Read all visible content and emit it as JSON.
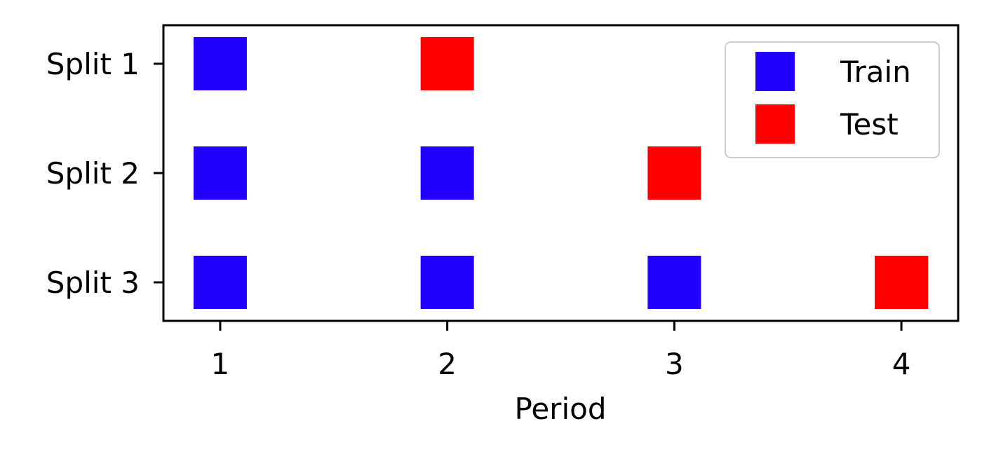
{
  "chart_data": {
    "type": "scatter",
    "title": "",
    "xlabel": "Period",
    "ylabel": "",
    "x_ticks": [
      1,
      2,
      3,
      4
    ],
    "y_categories": [
      "Split 1",
      "Split 2",
      "Split 3"
    ],
    "xlim": [
      0.75,
      4.25
    ],
    "series": [
      {
        "name": "Train",
        "color": "#2200ff",
        "marker": "square",
        "points": [
          {
            "x": 1,
            "y": "Split 1"
          },
          {
            "x": 1,
            "y": "Split 2"
          },
          {
            "x": 2,
            "y": "Split 2"
          },
          {
            "x": 1,
            "y": "Split 3"
          },
          {
            "x": 2,
            "y": "Split 3"
          },
          {
            "x": 3,
            "y": "Split 3"
          }
        ]
      },
      {
        "name": "Test",
        "color": "#ff0000",
        "marker": "square",
        "points": [
          {
            "x": 2,
            "y": "Split 1"
          },
          {
            "x": 3,
            "y": "Split 2"
          },
          {
            "x": 4,
            "y": "Split 3"
          }
        ]
      }
    ],
    "legend": "top-right",
    "grid": false
  }
}
